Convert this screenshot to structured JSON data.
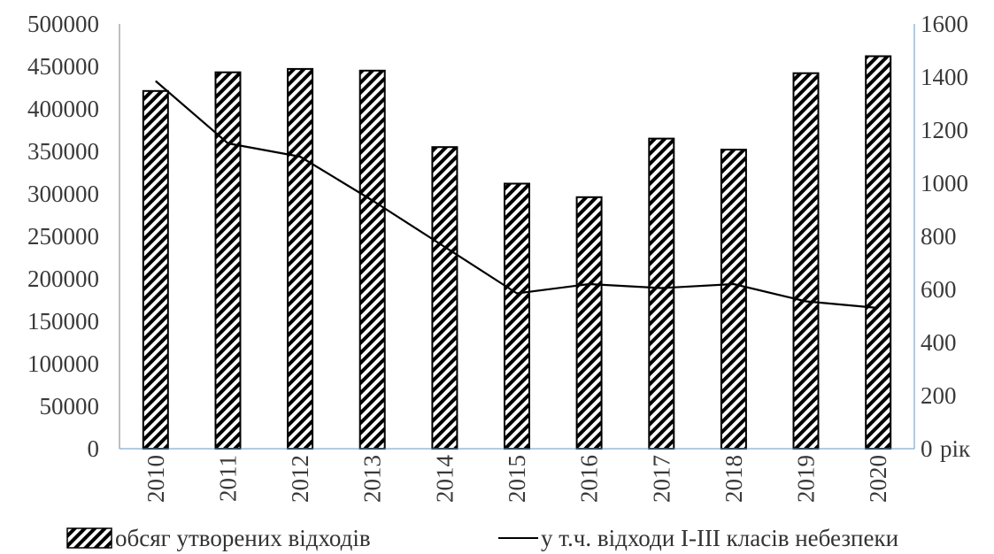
{
  "chart_data": {
    "type": "bar",
    "categories": [
      "2010",
      "2011",
      "2012",
      "2013",
      "2014",
      "2015",
      "2016",
      "2017",
      "2018",
      "2019",
      "2020"
    ],
    "series": [
      {
        "name": "обсяг утворених відходів",
        "type": "bar",
        "axis": "left",
        "pattern": "diagonal-hatch",
        "values": [
          421000,
          443000,
          447000,
          445000,
          355000,
          312000,
          296000,
          365000,
          352000,
          442000,
          462000
        ]
      },
      {
        "name": "у т.ч. відходи І-ІІІ класів небезпеки",
        "type": "line",
        "axis": "right",
        "values": [
          1385,
          1150,
          1100,
          935,
          760,
          585,
          620,
          605,
          620,
          555,
          530
        ]
      }
    ],
    "ylim_left": [
      0,
      500000
    ],
    "yticks_left": [
      "0",
      "50000",
      "100000",
      "150000",
      "200000",
      "250000",
      "300000",
      "350000",
      "400000",
      "450000",
      "500000"
    ],
    "ylim_right": [
      0,
      1600
    ],
    "yticks_right": [
      "0",
      "200",
      "400",
      "600",
      "800",
      "1000",
      "1200",
      "1400",
      "1600"
    ],
    "xlabel": "рік",
    "grid": false,
    "legend_position": "bottom",
    "colors": {
      "bar_fill": "#ffffff",
      "bar_stroke": "#000000",
      "line": "#000000",
      "axis_left": "#7f7f7f",
      "axis_right": "#5b9bd5",
      "text": "#3a3a3a"
    }
  }
}
